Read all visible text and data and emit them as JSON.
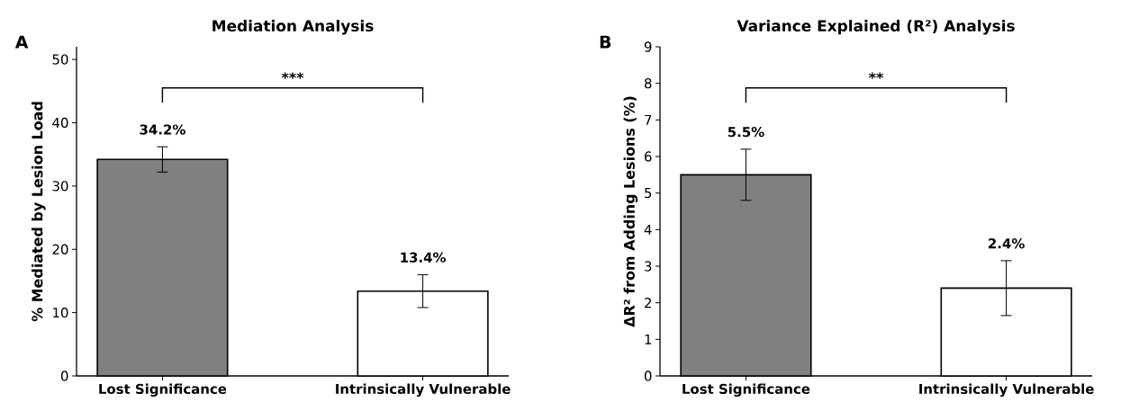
{
  "chart_data": [
    {
      "type": "bar",
      "title": "Mediation Analysis",
      "ylabel": "% Mediated by Lesion Load",
      "categories": [
        "Lost Significance",
        "Intrinsically Vulnerable"
      ],
      "values": [
        34.2,
        13.4
      ],
      "colors": [
        "#808080",
        "#ffffff"
      ],
      "errors": [
        2.0,
        2.6
      ],
      "value_labels": [
        "34.2%",
        "13.4%"
      ],
      "ylim": [
        0,
        52
      ],
      "yticks": [
        0,
        10,
        20,
        30,
        40,
        50
      ],
      "annotations": [
        "A",
        "***"
      ]
    },
    {
      "type": "bar",
      "title": "Variance Explained (R²) Analysis",
      "ylabel": "ΔR² from Adding Lesions (%)",
      "categories": [
        "Lost Significance",
        "Intrinsically Vulnerable"
      ],
      "values": [
        5.5,
        2.4
      ],
      "colors": [
        "#808080",
        "#ffffff"
      ],
      "errors": [
        0.7,
        0.75
      ],
      "value_labels": [
        "5.5%",
        "2.4%"
      ],
      "ylim": [
        0,
        9
      ],
      "yticks": [
        0,
        1,
        2,
        3,
        4,
        5,
        6,
        7,
        8,
        9
      ],
      "annotations": [
        "B",
        "**"
      ]
    }
  ]
}
